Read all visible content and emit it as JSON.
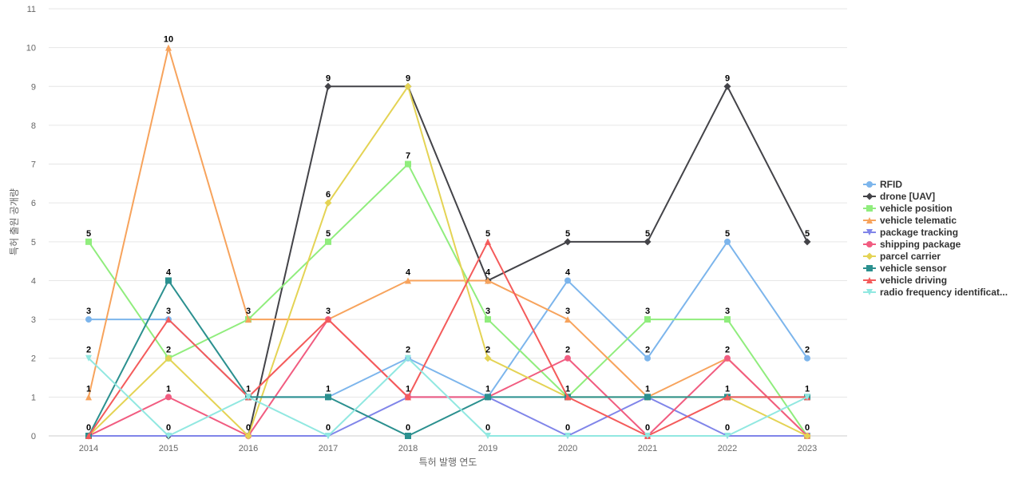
{
  "chart_data": {
    "type": "line",
    "xlabel": "특허 발행 연도",
    "ylabel": "특허 출원 공개량",
    "x": [
      2014,
      2015,
      2016,
      2017,
      2018,
      2019,
      2020,
      2021,
      2022,
      2023
    ],
    "ylim": [
      0,
      11
    ],
    "yticks": [
      0,
      1,
      2,
      3,
      4,
      5,
      6,
      7,
      8,
      9,
      10,
      11
    ],
    "grid": true,
    "legend_position": "right",
    "series": [
      {
        "name": "RFID",
        "color": "#7cb5ec",
        "marker": "circle",
        "values": [
          3,
          3,
          1,
          1,
          2,
          1,
          4,
          2,
          5,
          2
        ]
      },
      {
        "name": "drone [UAV]",
        "color": "#434348",
        "marker": "diamond",
        "values": [
          0,
          0,
          0,
          9,
          9,
          4,
          5,
          5,
          9,
          5
        ]
      },
      {
        "name": "vehicle position",
        "color": "#90ed7d",
        "marker": "square",
        "values": [
          5,
          2,
          3,
          5,
          7,
          3,
          1,
          3,
          3,
          0
        ]
      },
      {
        "name": "vehicle telematic",
        "color": "#f7a35c",
        "marker": "triangle",
        "values": [
          1,
          10,
          3,
          3,
          4,
          4,
          3,
          1,
          2,
          0
        ]
      },
      {
        "name": "package tracking",
        "color": "#8085e9",
        "marker": "triangle-down",
        "values": [
          0,
          0,
          0,
          0,
          1,
          1,
          0,
          1,
          0,
          0
        ]
      },
      {
        "name": "shipping package",
        "color": "#f15c80",
        "marker": "circle",
        "values": [
          0,
          1,
          0,
          3,
          1,
          1,
          2,
          0,
          2,
          0
        ]
      },
      {
        "name": "parcel carrier",
        "color": "#e4d354",
        "marker": "diamond",
        "values": [
          0,
          2,
          0,
          6,
          9,
          2,
          1,
          1,
          1,
          0
        ]
      },
      {
        "name": "vehicle sensor",
        "color": "#2b908f",
        "marker": "square",
        "values": [
          0,
          4,
          1,
          1,
          0,
          1,
          1,
          1,
          1,
          1
        ]
      },
      {
        "name": "vehicle driving",
        "color": "#f45b5b",
        "marker": "triangle",
        "values": [
          0,
          3,
          1,
          3,
          1,
          5,
          1,
          0,
          1,
          1
        ]
      },
      {
        "name": "radio frequency identificat...",
        "color": "#91e8e1",
        "marker": "triangle-down",
        "values": [
          2,
          0,
          1,
          0,
          2,
          0,
          0,
          0,
          0,
          1
        ]
      }
    ],
    "data_labels": [
      {
        "x": 2014,
        "y": 5,
        "text": "5"
      },
      {
        "x": 2014,
        "y": 3,
        "text": "3"
      },
      {
        "x": 2014,
        "y": 2,
        "text": "2"
      },
      {
        "x": 2014,
        "y": 1,
        "text": "1"
      },
      {
        "x": 2014,
        "y": 0,
        "text": "0"
      },
      {
        "x": 2015,
        "y": 10,
        "text": "10"
      },
      {
        "x": 2015,
        "y": 4,
        "text": "4"
      },
      {
        "x": 2015,
        "y": 3,
        "text": "3"
      },
      {
        "x": 2015,
        "y": 2,
        "text": "2"
      },
      {
        "x": 2015,
        "y": 1,
        "text": "1"
      },
      {
        "x": 2015,
        "y": 0,
        "text": "0"
      },
      {
        "x": 2016,
        "y": 3,
        "text": "3"
      },
      {
        "x": 2016,
        "y": 1,
        "text": "1"
      },
      {
        "x": 2016,
        "y": 0,
        "text": "0"
      },
      {
        "x": 2017,
        "y": 9,
        "text": "9"
      },
      {
        "x": 2017,
        "y": 6,
        "text": "6"
      },
      {
        "x": 2017,
        "y": 5,
        "text": "5"
      },
      {
        "x": 2017,
        "y": 3,
        "text": "3"
      },
      {
        "x": 2017,
        "y": 1,
        "text": "1"
      },
      {
        "x": 2017,
        "y": 0,
        "text": "0"
      },
      {
        "x": 2018,
        "y": 9,
        "text": "9"
      },
      {
        "x": 2018,
        "y": 7,
        "text": "7"
      },
      {
        "x": 2018,
        "y": 4,
        "text": "4"
      },
      {
        "x": 2018,
        "y": 2,
        "text": "2"
      },
      {
        "x": 2018,
        "y": 1,
        "text": "1"
      },
      {
        "x": 2018,
        "y": 0,
        "text": "0"
      },
      {
        "x": 2019,
        "y": 5,
        "text": "5"
      },
      {
        "x": 2019,
        "y": 4,
        "text": "4"
      },
      {
        "x": 2019,
        "y": 3,
        "text": "3"
      },
      {
        "x": 2019,
        "y": 2,
        "text": "2"
      },
      {
        "x": 2019,
        "y": 1,
        "text": "1"
      },
      {
        "x": 2019,
        "y": 0,
        "text": "0"
      },
      {
        "x": 2020,
        "y": 5,
        "text": "5"
      },
      {
        "x": 2020,
        "y": 4,
        "text": "4"
      },
      {
        "x": 2020,
        "y": 3,
        "text": "3"
      },
      {
        "x": 2020,
        "y": 2,
        "text": "2"
      },
      {
        "x": 2020,
        "y": 1,
        "text": "1"
      },
      {
        "x": 2020,
        "y": 0,
        "text": "0"
      },
      {
        "x": 2021,
        "y": 5,
        "text": "5"
      },
      {
        "x": 2021,
        "y": 3,
        "text": "3"
      },
      {
        "x": 2021,
        "y": 2,
        "text": "2"
      },
      {
        "x": 2021,
        "y": 1,
        "text": "1"
      },
      {
        "x": 2021,
        "y": 0,
        "text": "0"
      },
      {
        "x": 2022,
        "y": 9,
        "text": "9"
      },
      {
        "x": 2022,
        "y": 5,
        "text": "5"
      },
      {
        "x": 2022,
        "y": 3,
        "text": "3"
      },
      {
        "x": 2022,
        "y": 2,
        "text": "2"
      },
      {
        "x": 2022,
        "y": 1,
        "text": "1"
      },
      {
        "x": 2022,
        "y": 0,
        "text": "0"
      },
      {
        "x": 2023,
        "y": 5,
        "text": "5"
      },
      {
        "x": 2023,
        "y": 2,
        "text": "2"
      },
      {
        "x": 2023,
        "y": 1,
        "text": "1"
      },
      {
        "x": 2023,
        "y": 0,
        "text": "0"
      }
    ]
  }
}
